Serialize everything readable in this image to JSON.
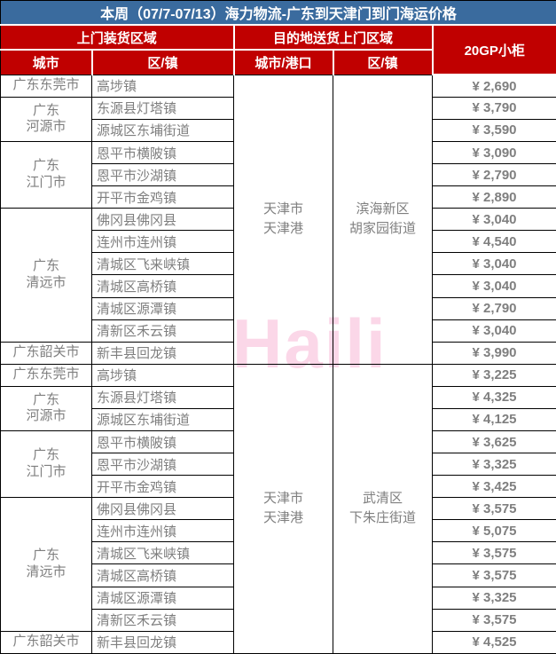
{
  "title": "本周（07/7-07/13）海力物流-广东到天津门到门海运价格",
  "watermark": "Haili",
  "colors": {
    "title_bg": "#3a6b9e",
    "header_bg": "#c00000",
    "price_text": "#f2752e",
    "body_text": "#7f7f7f",
    "watermark_pink": "#fbd7e8"
  },
  "header": {
    "pickup_area": "上门装货区域",
    "delivery_area": "目的地送货上门区域",
    "container": "20GP小柜",
    "city": "城市",
    "district": "区/镇",
    "dest_city_port": "城市/港口",
    "dest_district": "区/镇"
  },
  "sections": [
    {
      "dest": "天津市\n天津港",
      "district": "滨海新区\n胡家园街道"
    },
    {
      "dest": "天津市\n天津港",
      "district": "武清区\n下朱庄街道"
    }
  ],
  "rows": [
    {
      "city": "广东东莞市",
      "town": "高埗镇",
      "price": "¥ 2,690"
    },
    {
      "city": "广东\n河源市",
      "town": "东源县灯塔镇",
      "price": "¥ 3,790"
    },
    {
      "town": "源城区东埔街道",
      "price": "¥ 3,590"
    },
    {
      "city": "广东\n江门市",
      "town": "恩平市横陂镇",
      "price": "¥ 3,090"
    },
    {
      "town": "恩平市沙湖镇",
      "price": "¥ 2,790"
    },
    {
      "town": "开平市金鸡镇",
      "price": "¥ 2,890"
    },
    {
      "city": "广东\n清远市",
      "town": "佛冈县佛冈县",
      "price": "¥ 3,040"
    },
    {
      "town": "连州市连州镇",
      "price": "¥ 4,540"
    },
    {
      "town": "清城区飞来峡镇",
      "price": "¥ 3,040"
    },
    {
      "town": "清城区高桥镇",
      "price": "¥ 3,040"
    },
    {
      "town": "清城区源潭镇",
      "price": "¥ 2,790"
    },
    {
      "town": "清新区禾云镇",
      "price": "¥ 3,040"
    },
    {
      "city": "广东韶关市",
      "town": "新丰县回龙镇",
      "price": "¥ 3,990"
    },
    {
      "city": "广东东莞市",
      "town": "高埗镇",
      "price": "¥ 3,225"
    },
    {
      "city": "广东\n河源市",
      "town": "东源县灯塔镇",
      "price": "¥ 4,325"
    },
    {
      "town": "源城区东埔街道",
      "price": "¥ 4,125"
    },
    {
      "city": "广东\n江门市",
      "town": "恩平市横陂镇",
      "price": "¥ 3,625"
    },
    {
      "town": "恩平市沙湖镇",
      "price": "¥ 3,325"
    },
    {
      "town": "开平市金鸡镇",
      "price": "¥ 3,425"
    },
    {
      "city": "广东\n清远市",
      "town": "佛冈县佛冈县",
      "price": "¥ 3,575"
    },
    {
      "town": "连州市连州镇",
      "price": "¥ 5,075"
    },
    {
      "town": "清城区飞来峡镇",
      "price": "¥ 3,575"
    },
    {
      "town": "清城区高桥镇",
      "price": "¥ 3,575"
    },
    {
      "town": "清城区源潭镇",
      "price": "¥ 3,325"
    },
    {
      "town": "清新区禾云镇",
      "price": "¥ 3,575"
    },
    {
      "city": "广东韶关市",
      "town": "新丰县回龙镇",
      "price": "¥ 4,525"
    }
  ]
}
